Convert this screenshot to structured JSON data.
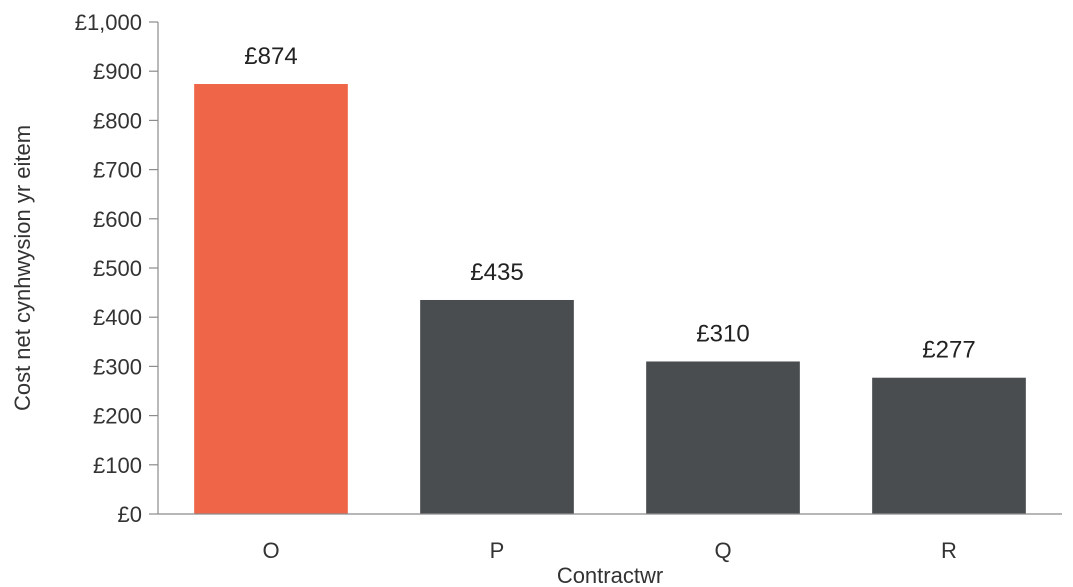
{
  "chart_data": {
    "type": "bar",
    "categories": [
      "O",
      "P",
      "Q",
      "R"
    ],
    "values": [
      874,
      435,
      310,
      277
    ],
    "data_labels": [
      "£874",
      "£435",
      "£310",
      "£277"
    ],
    "bar_colors": [
      "#ef6548",
      "#4a4d50",
      "#4a4d50",
      "#4a4d50"
    ],
    "xlabel": "Contractwr",
    "ylabel": "Cost net cynhwysion yr eitem",
    "ylim": [
      0,
      1000
    ],
    "yticks": [
      0,
      100,
      200,
      300,
      400,
      500,
      600,
      700,
      800,
      900,
      1000
    ],
    "ytick_labels": [
      "£0",
      "£100",
      "£200",
      "£300",
      "£400",
      "£500",
      "£600",
      "£700",
      "£800",
      "£900",
      "£1,000"
    ],
    "grid": false,
    "legend": "none"
  }
}
